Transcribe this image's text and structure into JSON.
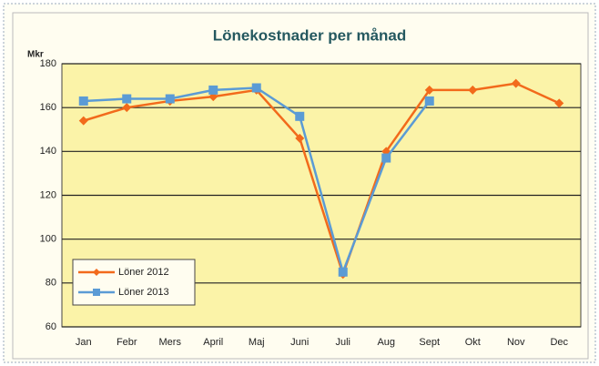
{
  "chart_data": {
    "type": "line",
    "title": "Lönekostnader per månad",
    "y_label": "Mkr",
    "categories": [
      "Jan",
      "Febr",
      "Mers",
      "April",
      "Maj",
      "Juni",
      "Juli",
      "Aug",
      "Sept",
      "Okt",
      "Nov",
      "Dec"
    ],
    "series": [
      {
        "name": "Löner 2012",
        "color": "#f26a1b",
        "values": [
          154,
          160,
          163,
          165,
          168,
          146,
          84,
          140,
          168,
          168,
          171,
          162
        ]
      },
      {
        "name": "Löner 2013",
        "color": "#5b9bd5",
        "values": [
          163,
          164,
          164,
          168,
          169,
          156,
          85,
          137,
          163,
          null,
          null,
          null
        ]
      }
    ],
    "ylim": [
      60,
      180
    ],
    "yticks": [
      60,
      80,
      100,
      120,
      140,
      160,
      180
    ],
    "grid": true,
    "legend": "lower left"
  }
}
